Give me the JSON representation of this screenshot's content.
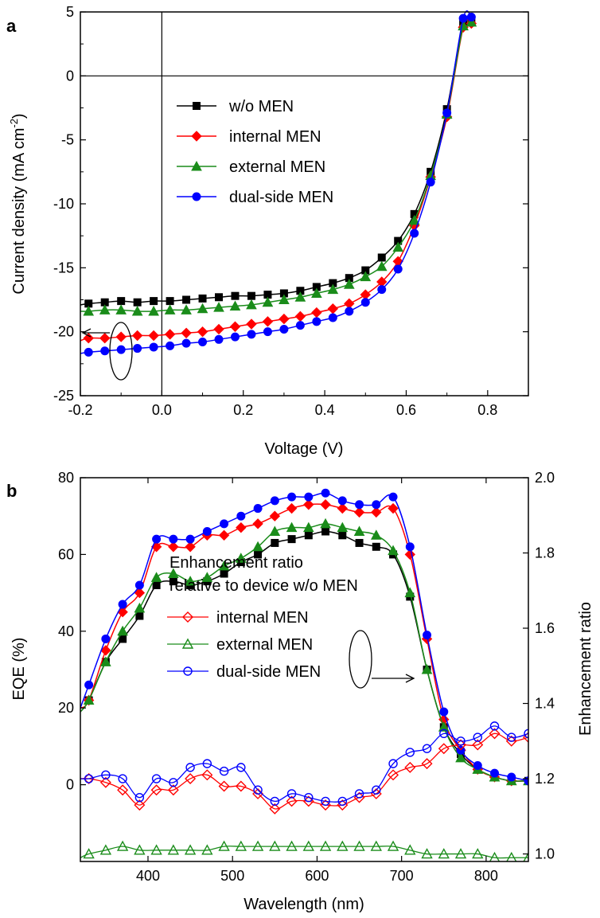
{
  "chart_data": [
    {
      "panel_label": "a",
      "type": "line",
      "title": "",
      "xlabel": "Voltage (V)",
      "ylabel_main": "Current density (mA cm",
      "ylabel_sup": "-2",
      "ylabel_close": ")",
      "xlim": [
        -0.2,
        0.9
      ],
      "ylim": [
        -25,
        5
      ],
      "xticks": [
        "-0.2",
        "0.0",
        "0.2",
        "0.4",
        "0.6",
        "0.8"
      ],
      "yticks": [
        "5",
        "0",
        "-5",
        "-10",
        "-15",
        "-20",
        "-25"
      ],
      "legend_position": "upper-left-inside",
      "x": [
        -0.2,
        -0.18,
        -0.14,
        -0.1,
        -0.06,
        -0.02,
        0.02,
        0.06,
        0.1,
        0.14,
        0.18,
        0.22,
        0.26,
        0.3,
        0.34,
        0.38,
        0.42,
        0.46,
        0.5,
        0.54,
        0.58,
        0.62,
        0.66,
        0.7,
        0.74,
        0.76
      ],
      "series": [
        {
          "name": "w/o MEN",
          "color": "#000000",
          "marker": "square",
          "values": [
            -17.9,
            -17.8,
            -17.7,
            -17.6,
            -17.7,
            -17.6,
            -17.6,
            -17.5,
            -17.4,
            -17.3,
            -17.2,
            -17.2,
            -17.1,
            -17.0,
            -16.8,
            -16.5,
            -16.2,
            -15.8,
            -15.2,
            -14.2,
            -12.9,
            -10.8,
            -7.5,
            -2.6,
            4.1,
            4.2
          ]
        },
        {
          "name": "internal MEN",
          "color": "#ff0000",
          "marker": "diamond",
          "values": [
            -20.7,
            -20.5,
            -20.5,
            -20.4,
            -20.3,
            -20.3,
            -20.2,
            -20.1,
            -20.0,
            -19.8,
            -19.6,
            -19.4,
            -19.2,
            -19.0,
            -18.8,
            -18.5,
            -18.2,
            -17.8,
            -17.1,
            -16.1,
            -14.5,
            -11.7,
            -7.9,
            -3.2,
            3.8,
            4.1
          ]
        },
        {
          "name": "external MEN",
          "color": "#1a8c1a",
          "marker": "triangle",
          "values": [
            -18.4,
            -18.4,
            -18.3,
            -18.3,
            -18.4,
            -18.4,
            -18.3,
            -18.3,
            -18.2,
            -18.1,
            -18.0,
            -17.9,
            -17.7,
            -17.5,
            -17.3,
            -17.0,
            -16.7,
            -16.3,
            -15.7,
            -14.9,
            -13.4,
            -11.3,
            -7.8,
            -3.0,
            3.9,
            4.2
          ]
        },
        {
          "name": "dual-side MEN",
          "color": "#0000ff",
          "marker": "circle",
          "values": [
            -21.7,
            -21.6,
            -21.5,
            -21.4,
            -21.3,
            -21.2,
            -21.1,
            -20.9,
            -20.8,
            -20.6,
            -20.4,
            -20.2,
            -20.0,
            -19.8,
            -19.5,
            -19.2,
            -18.9,
            -18.4,
            -17.7,
            -16.7,
            -15.1,
            -12.3,
            -8.3,
            -2.9,
            4.5,
            4.6
          ]
        }
      ]
    },
    {
      "panel_label": "b",
      "type": "line",
      "title": "",
      "xlabel": "Wavelength (nm)",
      "ylabel": "EQE (%)",
      "y2label": "Enhancement ratio",
      "xlim": [
        320,
        850
      ],
      "ylim": [
        -20,
        80
      ],
      "y2lim": [
        0.98,
        2.0
      ],
      "xticks": [
        "400",
        "500",
        "600",
        "700",
        "800"
      ],
      "yticks": [
        "80",
        "60",
        "40",
        "20",
        "0"
      ],
      "y2ticks": [
        "2.0",
        "1.8",
        "1.6",
        "1.4",
        "1.2",
        "1.0"
      ],
      "legend_title_line1": "Enhancement ratio",
      "legend_title_line2": "relative to device w/o MEN",
      "legend_position": "center",
      "x": [
        320,
        330,
        350,
        370,
        390,
        410,
        430,
        450,
        470,
        490,
        510,
        530,
        550,
        570,
        590,
        610,
        630,
        650,
        670,
        690,
        710,
        730,
        750,
        770,
        790,
        810,
        830,
        850
      ],
      "eqe_series": [
        {
          "name": "w/o MEN",
          "color": "#000000",
          "marker": "square",
          "values": [
            19,
            22,
            32,
            38,
            44,
            52,
            53,
            52,
            53,
            55,
            58,
            60,
            63,
            64,
            65,
            66,
            65,
            63,
            62,
            60,
            49,
            30,
            15,
            8,
            4,
            2,
            1,
            1
          ]
        },
        {
          "name": "internal MEN",
          "color": "#ff0000",
          "marker": "diamond",
          "values": [
            20,
            22,
            35,
            45,
            50,
            62,
            62,
            62,
            65,
            65,
            67,
            68,
            70,
            72,
            73,
            73,
            72,
            71,
            71,
            72,
            60,
            38,
            17,
            9,
            4,
            2,
            1,
            1
          ]
        },
        {
          "name": "external MEN",
          "color": "#1a8c1a",
          "marker": "triangle",
          "values": [
            19,
            22,
            32,
            40,
            46,
            54,
            55,
            53,
            54,
            57,
            59,
            62,
            66,
            67,
            67,
            68,
            67,
            66,
            65,
            61,
            50,
            30,
            15,
            7,
            4,
            2,
            1,
            1
          ]
        },
        {
          "name": "dual-side MEN",
          "color": "#0000ff",
          "marker": "circle",
          "values": [
            20,
            26,
            38,
            47,
            52,
            64,
            64,
            64,
            66,
            68,
            70,
            72,
            74,
            75,
            75,
            76,
            74,
            73,
            73,
            75,
            62,
            39,
            19,
            9,
            5,
            3,
            2,
            1
          ]
        }
      ],
      "ratio_series": [
        {
          "name": "internal MEN",
          "color": "#ff0000",
          "marker": "open-diamond",
          "values": [
            1.2,
            1.2,
            1.19,
            1.17,
            1.13,
            1.17,
            1.17,
            1.2,
            1.21,
            1.18,
            1.18,
            1.16,
            1.12,
            1.14,
            1.14,
            1.13,
            1.13,
            1.15,
            1.16,
            1.21,
            1.23,
            1.24,
            1.28,
            1.29,
            1.29,
            1.32,
            1.3,
            1.31
          ]
        },
        {
          "name": "external MEN",
          "color": "#1a8c1a",
          "marker": "open-triangle",
          "values": [
            0.99,
            1.0,
            1.01,
            1.02,
            1.01,
            1.01,
            1.01,
            1.01,
            1.01,
            1.02,
            1.02,
            1.02,
            1.02,
            1.02,
            1.02,
            1.02,
            1.02,
            1.02,
            1.02,
            1.02,
            1.01,
            1.0,
            1.0,
            1.0,
            1.0,
            0.99,
            0.99,
            0.99
          ]
        },
        {
          "name": "dual-side MEN",
          "color": "#0000ff",
          "marker": "open-circle",
          "values": [
            1.2,
            1.2,
            1.21,
            1.2,
            1.15,
            1.2,
            1.19,
            1.23,
            1.24,
            1.22,
            1.23,
            1.17,
            1.14,
            1.16,
            1.15,
            1.14,
            1.14,
            1.16,
            1.17,
            1.24,
            1.27,
            1.28,
            1.32,
            1.3,
            1.31,
            1.34,
            1.31,
            1.32
          ]
        }
      ]
    }
  ]
}
